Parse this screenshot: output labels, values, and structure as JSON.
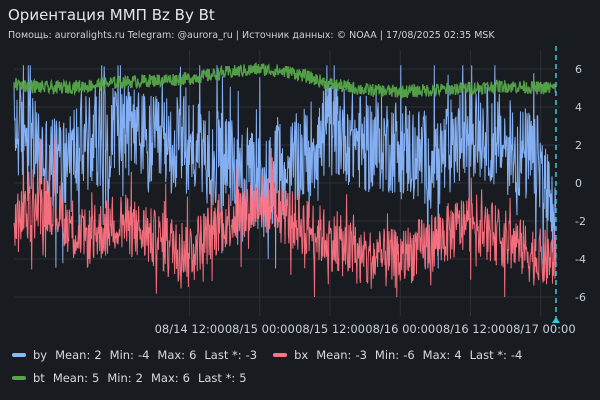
{
  "header": {
    "title": "Ориентация ММП Bz By Bt",
    "subtitle": "Помощь: auroralights.ru Telegram: @aurora_ru | Источник данных:  © NOAA | 17/08/2025 02:35 MSK"
  },
  "chart_data": {
    "type": "line",
    "x_ticks": [
      "08/14 12:00",
      "08/15 00:00",
      "08/15 12:00",
      "08/16 00:00",
      "08/16 12:00",
      "08/17 00:00"
    ],
    "x_range_hours": [
      -18,
      77
    ],
    "y_ticks": [
      "6",
      "4",
      "2",
      "0",
      "-2",
      "-4",
      "-6"
    ],
    "y_range": [
      -7,
      7
    ],
    "grid": true,
    "y_axis_side": "right",
    "current_time_marker_hours": 74.6,
    "series": [
      {
        "key": "by",
        "name": "by",
        "color": "#8ab8ff",
        "stats": {
          "mean": "2",
          "min": "-4",
          "max": "6",
          "last": "-3"
        },
        "envelope": [
          [
            -18,
            3
          ],
          [
            -12,
            1
          ],
          [
            -6,
            2
          ],
          [
            0,
            3
          ],
          [
            6,
            2
          ],
          [
            12,
            2
          ],
          [
            18,
            1
          ],
          [
            24,
            0
          ],
          [
            30,
            1
          ],
          [
            36,
            3
          ],
          [
            42,
            2
          ],
          [
            48,
            2
          ],
          [
            54,
            1
          ],
          [
            60,
            3
          ],
          [
            66,
            2
          ],
          [
            72,
            1
          ],
          [
            74.6,
            -3
          ]
        ]
      },
      {
        "key": "bx",
        "name": "bx",
        "color": "#ff7383",
        "stats": {
          "mean": "-3",
          "min": "-6",
          "max": "4",
          "last": "-4"
        },
        "envelope": [
          [
            -18,
            -2
          ],
          [
            -12,
            -1
          ],
          [
            -6,
            -3
          ],
          [
            0,
            -2
          ],
          [
            6,
            -3
          ],
          [
            12,
            -3.5
          ],
          [
            18,
            -2
          ],
          [
            24,
            -1
          ],
          [
            30,
            -2
          ],
          [
            36,
            -3
          ],
          [
            42,
            -4
          ],
          [
            48,
            -4
          ],
          [
            54,
            -3
          ],
          [
            60,
            -2
          ],
          [
            66,
            -3
          ],
          [
            72,
            -4
          ],
          [
            74.6,
            -4
          ]
        ]
      },
      {
        "key": "bt",
        "name": "bt",
        "color": "#56a64b",
        "stats": {
          "mean": "5",
          "min": "2",
          "max": "6",
          "last": "5"
        },
        "envelope": [
          [
            -18,
            5.2
          ],
          [
            -12,
            5.0
          ],
          [
            -6,
            5.1
          ],
          [
            0,
            5.3
          ],
          [
            6,
            5.4
          ],
          [
            12,
            5.5
          ],
          [
            18,
            5.8
          ],
          [
            24,
            6.0
          ],
          [
            30,
            5.8
          ],
          [
            36,
            5.2
          ],
          [
            42,
            4.9
          ],
          [
            48,
            4.8
          ],
          [
            54,
            4.9
          ],
          [
            60,
            5.0
          ],
          [
            66,
            5.1
          ],
          [
            72,
            5.0
          ],
          [
            74.6,
            5.0
          ]
        ]
      }
    ]
  },
  "legend": {
    "labels": {
      "mean": "Mean:",
      "min": "Min:",
      "max": "Max:",
      "last": "Last *:"
    }
  }
}
